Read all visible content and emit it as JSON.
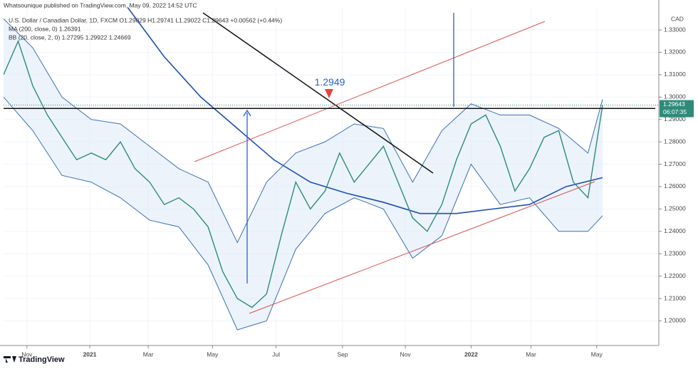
{
  "header": {
    "published": "Whatsounique published on TradingView.com, May 09, 2022 14:52 UTC",
    "symbol": "U.S. Dollar / Canadian Dollar, 1D, FXCM  O1.29029 H1.29741 L1.29022 C1.29643 +0.00562 (+0.44%)",
    "ma": "MA (200, close, 0)  1.26391",
    "bb": "BB (20, close, 2, 0)  1.27295  1.29922  1.24669"
  },
  "footer": {
    "brand": "TradingView"
  },
  "chart_data": {
    "type": "line",
    "currency": "CAD",
    "annotation": {
      "text": "1.2949",
      "value": 1.2949
    },
    "last_price": 1.29643,
    "countdown": "06:07:35",
    "xlim": [
      0,
      89.7
    ],
    "ylim": [
      1.189,
      1.3402
    ],
    "xticks": [
      {
        "value": 3.2,
        "label": "Nov"
      },
      {
        "value": 11.8,
        "label": "2021"
      },
      {
        "value": 19.8,
        "label": "Mar"
      },
      {
        "value": 28.6,
        "label": "May"
      },
      {
        "value": 37.3,
        "label": "Jul"
      },
      {
        "value": 46.4,
        "label": "Sep"
      },
      {
        "value": 55,
        "label": "Nov"
      },
      {
        "value": 64,
        "label": "2022"
      },
      {
        "value": 72.2,
        "label": "Mar"
      },
      {
        "value": 81.2,
        "label": "May"
      }
    ],
    "yticks": [
      {
        "value": 1.2,
        "label": "1.20000"
      },
      {
        "value": 1.21,
        "label": "1.21000"
      },
      {
        "value": 1.22,
        "label": "1.22000"
      },
      {
        "value": 1.23,
        "label": "1.23000"
      },
      {
        "value": 1.24,
        "label": "1.24000"
      },
      {
        "value": 1.25,
        "label": "1.25000"
      },
      {
        "value": 1.26,
        "label": "1.26000"
      },
      {
        "value": 1.27,
        "label": "1.27000"
      },
      {
        "value": 1.28,
        "label": "1.28000"
      },
      {
        "value": 1.29,
        "label": "1.29000"
      },
      {
        "value": 1.3,
        "label": "1.30000"
      },
      {
        "value": 1.31,
        "label": "1.31000"
      },
      {
        "value": 1.32,
        "label": "1.32000"
      },
      {
        "value": 1.33,
        "label": "1.33000"
      }
    ],
    "series": [
      {
        "role": "band",
        "color": "#3a6fb5",
        "x": [
          0,
          4,
          8,
          12,
          16,
          20,
          24,
          28,
          32,
          36,
          40,
          44,
          48,
          52,
          56,
          60,
          64,
          68,
          72,
          76,
          80,
          82
        ],
        "values": [
          1.335,
          1.322,
          1.3,
          1.29,
          1.288,
          1.278,
          1.268,
          1.262,
          1.235,
          1.262,
          1.275,
          1.28,
          1.288,
          1.286,
          1.262,
          1.285,
          1.297,
          1.292,
          1.292,
          1.286,
          1.275,
          1.299
        ]
      },
      {
        "role": "band",
        "color": "#3a6fb5",
        "x": [
          0,
          4,
          8,
          12,
          16,
          20,
          24,
          28,
          32,
          36,
          40,
          44,
          48,
          52,
          56,
          60,
          64,
          68,
          72,
          76,
          80,
          82
        ],
        "values": [
          1.3,
          1.285,
          1.265,
          1.262,
          1.255,
          1.245,
          1.242,
          1.225,
          1.196,
          1.2,
          1.232,
          1.248,
          1.255,
          1.25,
          1.228,
          1.238,
          1.27,
          1.252,
          1.255,
          1.24,
          1.24,
          1.247
        ]
      },
      {
        "role": "ma",
        "color": "#1f4fb0",
        "x": [
          17,
          22,
          27,
          32,
          37,
          42,
          47,
          52,
          57,
          62,
          67,
          72,
          77,
          82
        ],
        "values": [
          1.34,
          1.318,
          1.3,
          1.286,
          1.272,
          1.262,
          1.257,
          1.253,
          1.248,
          1.248,
          1.25,
          1.252,
          1.26,
          1.264
        ]
      },
      {
        "role": "price",
        "color": "#2e8b7a",
        "x": [
          0,
          2,
          4,
          6,
          8,
          10,
          12,
          14,
          16,
          18,
          20,
          22,
          24,
          26,
          28,
          30,
          32,
          34,
          36,
          38,
          40,
          42,
          44,
          46,
          48,
          50,
          52,
          54,
          56,
          58,
          60,
          62,
          64,
          66,
          68,
          70,
          72,
          74,
          76,
          78,
          80,
          82
        ],
        "values": [
          1.31,
          1.325,
          1.305,
          1.292,
          1.282,
          1.272,
          1.275,
          1.272,
          1.28,
          1.268,
          1.262,
          1.252,
          1.255,
          1.25,
          1.242,
          1.222,
          1.21,
          1.206,
          1.212,
          1.238,
          1.262,
          1.25,
          1.258,
          1.275,
          1.262,
          1.27,
          1.278,
          1.262,
          1.246,
          1.24,
          1.252,
          1.272,
          1.288,
          1.292,
          1.278,
          1.258,
          1.268,
          1.282,
          1.285,
          1.262,
          1.255,
          1.2964
        ]
      }
    ]
  }
}
